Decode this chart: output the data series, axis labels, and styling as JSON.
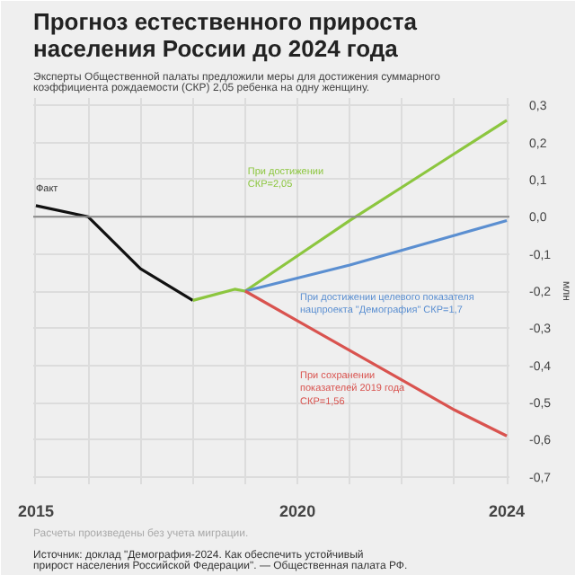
{
  "chart_data": {
    "type": "line",
    "title": "Прогноз естественного прироста\nнаселения России до 2024 года",
    "subtitle": "Эксперты Общественной палаты предложили меры для достижения суммарного\nкоэффициента рождаемости (СКР) 2,05 ребенка на одну женщину.",
    "ylabel": "млн",
    "series": [
      {
        "name": "Факт",
        "color": "#111111",
        "x": [
          2015,
          2016,
          2017,
          2018
        ],
        "values": [
          0.03,
          0.0,
          -0.14,
          -0.225
        ]
      },
      {
        "name": "При достижении\nСКР=2,05",
        "color": "#8cc63f",
        "x": [
          2018,
          2018.8,
          2019,
          2020,
          2021,
          2022,
          2023,
          2024
        ],
        "values": [
          -0.225,
          -0.195,
          -0.2,
          -0.105,
          -0.01,
          0.08,
          0.17,
          0.26
        ]
      },
      {
        "name": "При достижении целевого показателя\nнацпроекта \"Демография\" СКР=1,7",
        "color": "#5b8fd1",
        "x": [
          2019,
          2020,
          2021,
          2022,
          2023,
          2024
        ],
        "values": [
          -0.2,
          -0.165,
          -0.13,
          -0.09,
          -0.05,
          -0.01
        ]
      },
      {
        "name": "При сохранении\nпоказателей 2019 года\nСКР=1,56",
        "color": "#d9534f",
        "x": [
          2019,
          2020,
          2021,
          2022,
          2023,
          2024
        ],
        "values": [
          -0.2,
          -0.28,
          -0.36,
          -0.44,
          -0.52,
          -0.59
        ]
      }
    ],
    "xlim": [
      2014.95,
      2024.05
    ],
    "ylim": [
      -0.72,
      0.32
    ],
    "xticks": [
      2015,
      {
        "value": 2016,
        "label": null
      },
      {
        "value": 2017,
        "label": null
      },
      {
        "value": 2018,
        "label": null
      },
      {
        "value": 2019,
        "label": null
      },
      2020,
      {
        "value": 2021,
        "label": null
      },
      {
        "value": 2022,
        "label": null
      },
      {
        "value": 2023,
        "label": null
      },
      2024
    ],
    "yticks": [
      {
        "value": 0.3,
        "label": "0,3"
      },
      {
        "value": 0.2,
        "label": "0,2"
      },
      {
        "value": 0.1,
        "label": "0,1"
      },
      {
        "value": 0.0,
        "label": "0,0"
      },
      {
        "value": -0.1,
        "label": "-0,1"
      },
      {
        "value": -0.2,
        "label": "-0,2"
      },
      {
        "value": -0.3,
        "label": "-0,3"
      },
      {
        "value": -0.4,
        "label": "-0,4"
      },
      {
        "value": -0.5,
        "label": "-0,5"
      },
      {
        "value": -0.6,
        "label": "-0,6"
      },
      {
        "value": -0.7,
        "label": "-0,7"
      }
    ],
    "ref_lines": [
      {
        "axis": "y",
        "value": 0,
        "label": null,
        "color": "#888888"
      }
    ],
    "grid": true,
    "marker": "none",
    "line_style": "solid",
    "annotations": [
      "Расчеты произведены без учета миграции.",
      "Источник: доклад \"Демография-2024. Как обеспечить устойчивый\nприрост населения Российской Федерации\". — Общественная палата РФ."
    ]
  }
}
